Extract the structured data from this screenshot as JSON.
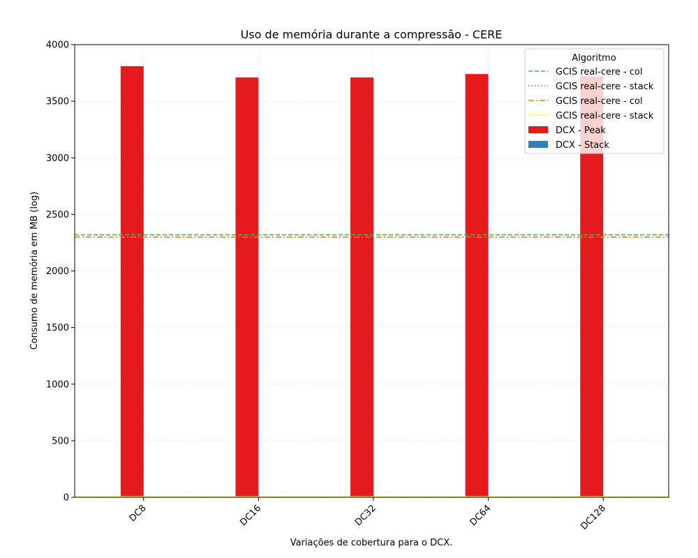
{
  "chart_data": {
    "type": "bar",
    "title": "Uso de memória durante a compressão -  CERE",
    "xlabel": "Variações de cobertura para o DCX.",
    "ylabel": "Consumo de memória em MB (log)",
    "categories": [
      "DC8",
      "DC16",
      "DC32",
      "DC64",
      "DC128"
    ],
    "ylim": [
      0,
      4000
    ],
    "yticks": [
      0,
      500,
      1000,
      1500,
      2000,
      2500,
      3000,
      3500,
      4000
    ],
    "grid": true,
    "series": [
      {
        "name": "DCX - Peak",
        "color": "#e41a1c",
        "values": [
          3810,
          3710,
          3710,
          3740,
          3720
        ]
      },
      {
        "name": "DCX - Stack",
        "color": "#377eb8",
        "values": [
          0,
          0,
          0,
          0,
          0
        ]
      }
    ],
    "hlines": [
      {
        "name": "GCIS real-cere - col",
        "color": "#4daf4a",
        "style": "dashed",
        "value": 2320
      },
      {
        "name": "GCIS real-cere - stack",
        "color": "#984ea3",
        "style": "dotted",
        "value": 5
      },
      {
        "name": "GCIS real-cere - col",
        "color": "#ff7f00",
        "style": "dashdot",
        "value": 2300
      },
      {
        "name": "GCIS real-cere - stack",
        "color": "#ffff33",
        "style": "solid",
        "value": 5
      }
    ],
    "legend": {
      "title": "Algoritmo",
      "placement": "top-right"
    }
  }
}
